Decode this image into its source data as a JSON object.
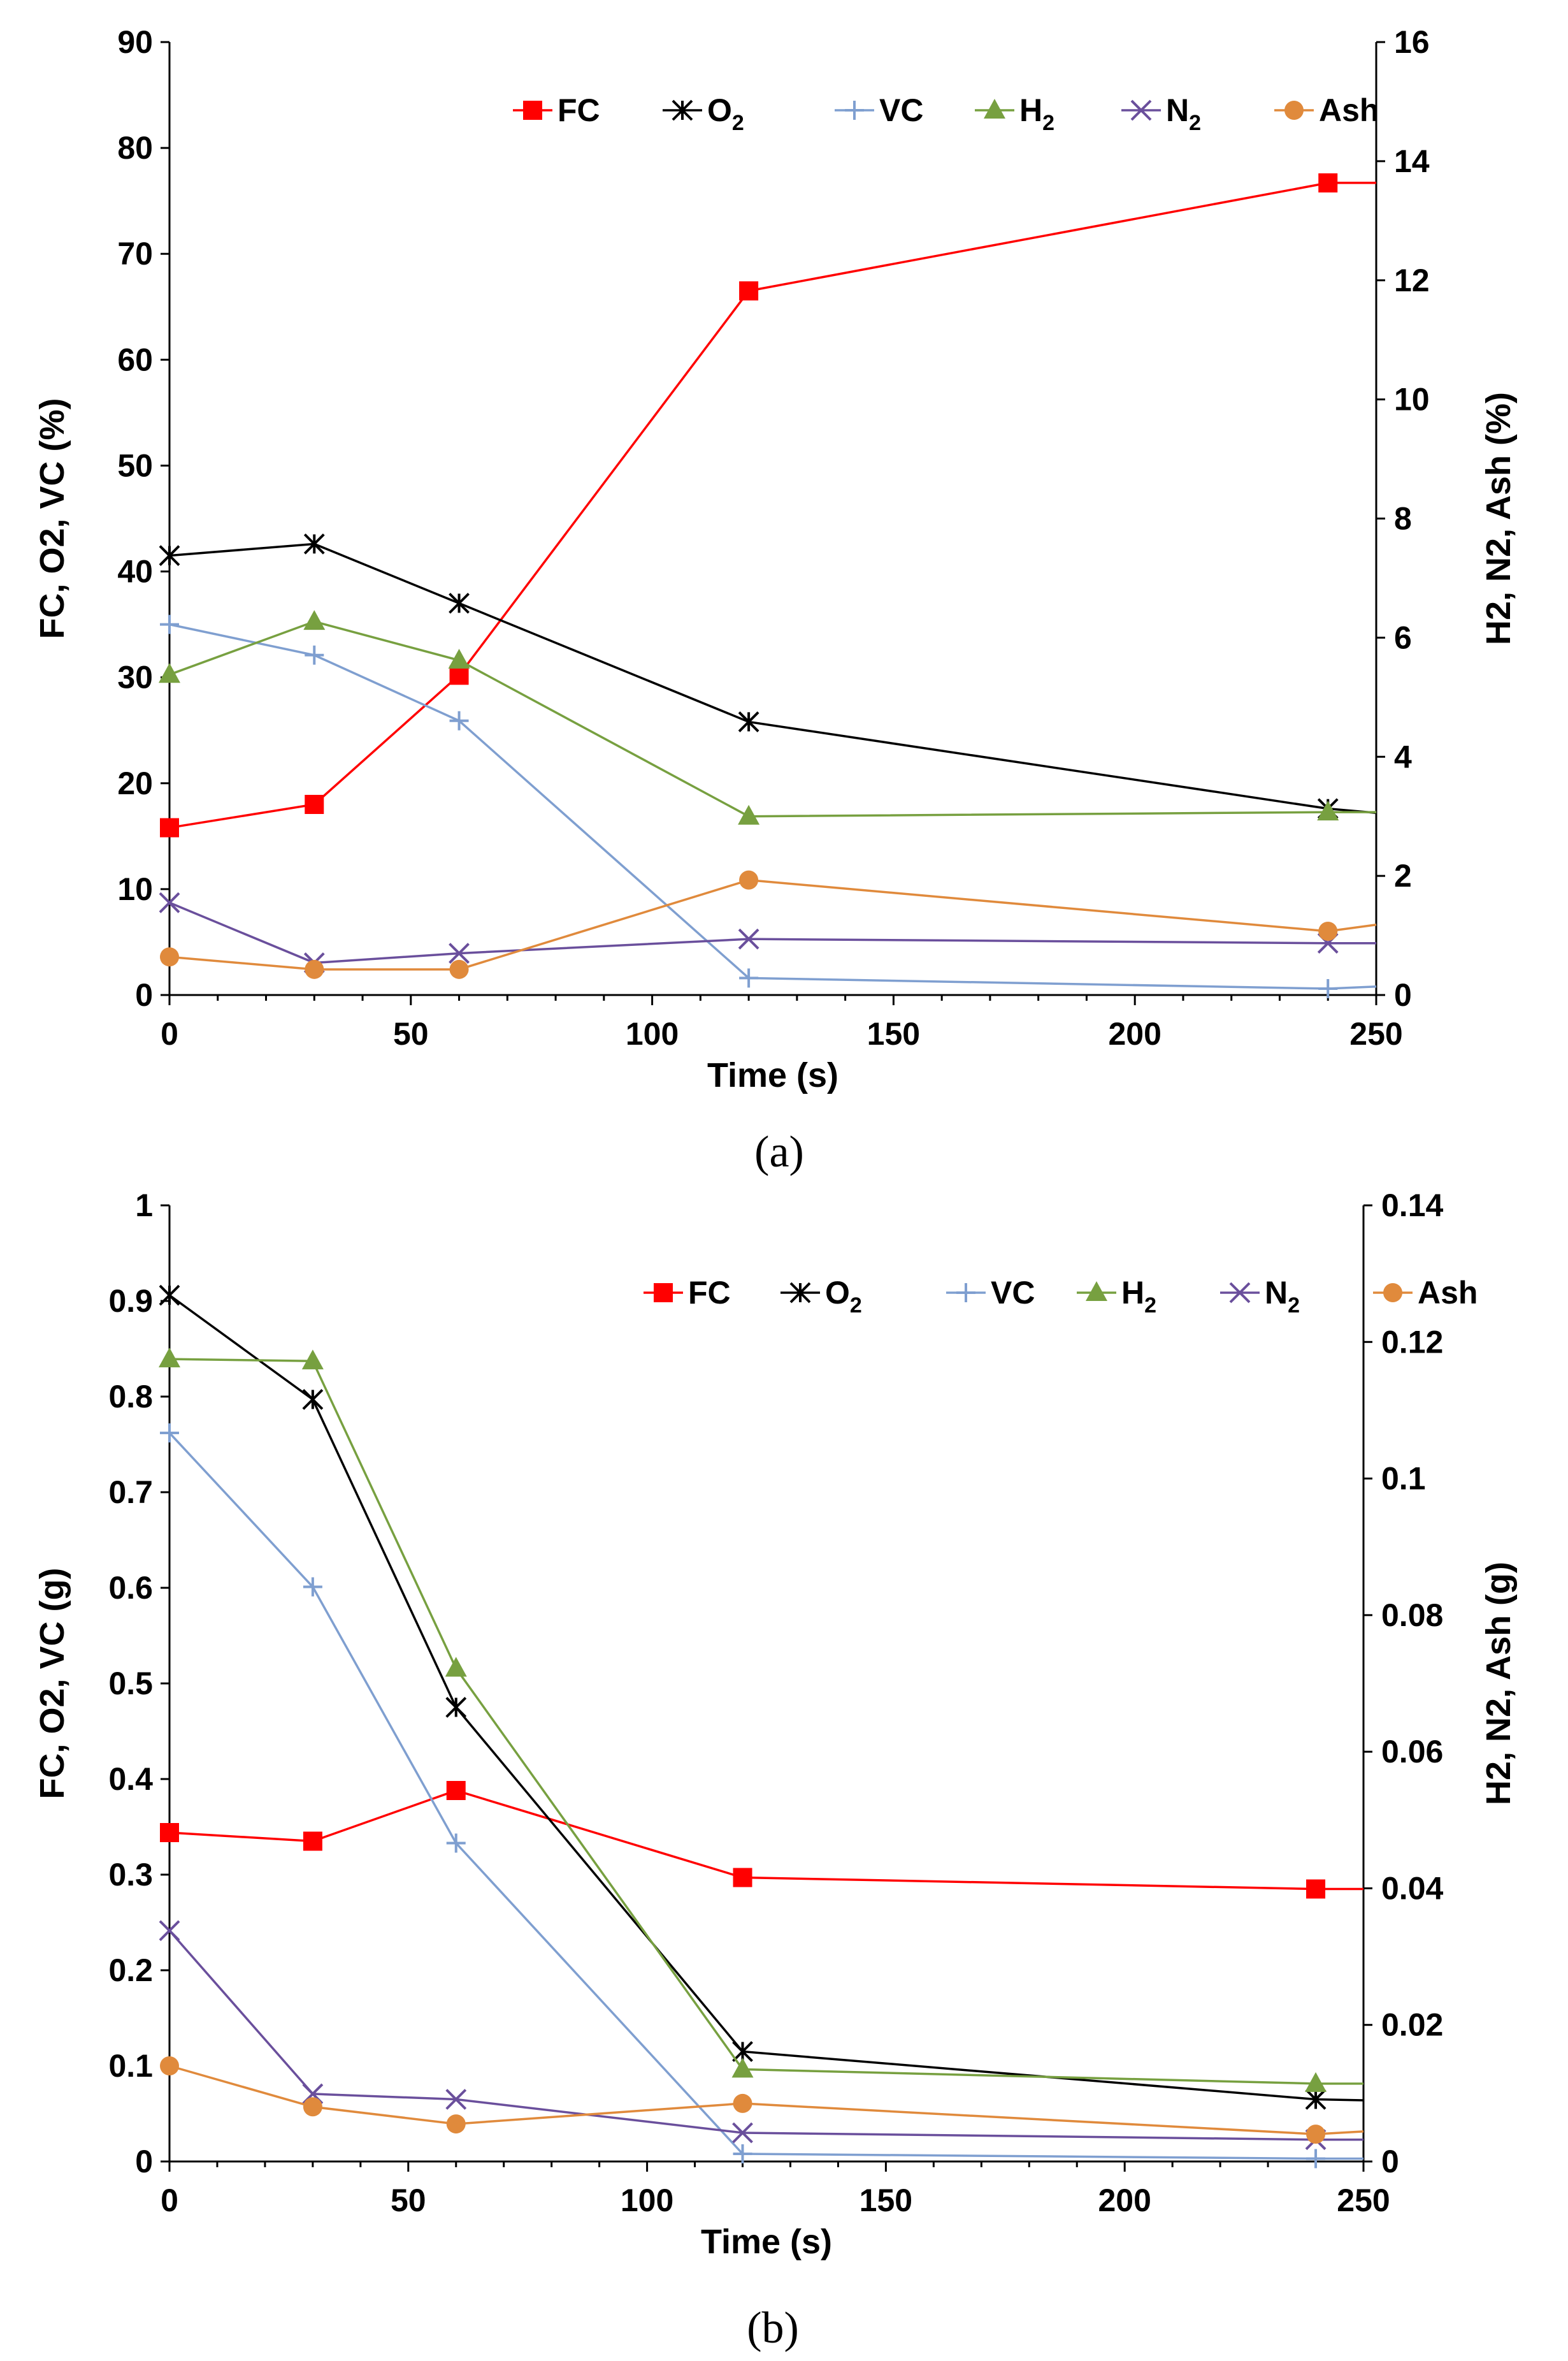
{
  "chart_data": [
    {
      "type": "line",
      "caption": "(a)",
      "xlabel": "Time (s)",
      "ylabel": "FC, O2, VC (%)",
      "y2label": "H2, N2, Ash (%)",
      "xlim": [
        0,
        250
      ],
      "ylim": [
        0,
        90
      ],
      "y2lim": [
        0,
        16
      ],
      "xticks": [
        "0",
        "50",
        "100",
        "150",
        "200",
        "250"
      ],
      "yticks": [
        "0",
        "10",
        "20",
        "30",
        "40",
        "50",
        "60",
        "70",
        "80",
        "90"
      ],
      "y2ticks": [
        "0",
        "2",
        "4",
        "6",
        "8",
        "10",
        "12",
        "14",
        "16"
      ],
      "legend_position": "top",
      "x": [
        0,
        30,
        60,
        120,
        240,
        250
      ],
      "series": [
        {
          "name": "FC",
          "legend_main": "FC",
          "legend_sub": "",
          "axis": "left",
          "color": "#ff0000",
          "marker": "square",
          "values": [
            15.8,
            18.0,
            30.2,
            66.5,
            76.7,
            76.7
          ]
        },
        {
          "name": "O2",
          "legend_main": "O",
          "legend_sub": "2",
          "axis": "left",
          "color": "#000000",
          "marker": "star",
          "values": [
            41.5,
            42.6,
            37.0,
            25.8,
            17.6,
            17.2
          ]
        },
        {
          "name": "VC",
          "legend_main": "VC",
          "legend_sub": "",
          "axis": "left",
          "color": "#7f9fd0",
          "marker": "plus",
          "values": [
            35.0,
            32.1,
            25.9,
            1.6,
            0.6,
            0.8
          ]
        },
        {
          "name": "H2",
          "legend_main": "H",
          "legend_sub": "2",
          "axis": "right",
          "color": "#77a040",
          "marker": "triangle",
          "values": [
            5.38,
            6.27,
            5.62,
            3.0,
            3.07,
            3.07
          ]
        },
        {
          "name": "N2",
          "legend_main": "N",
          "legend_sub": "2",
          "axis": "right",
          "color": "#6a4f9c",
          "marker": "x",
          "values": [
            1.55,
            0.54,
            0.7,
            0.94,
            0.87,
            0.87
          ]
        },
        {
          "name": "Ash",
          "legend_main": "Ash",
          "legend_sub": "",
          "axis": "right",
          "color": "#e08a3c",
          "marker": "circle",
          "values": [
            0.64,
            0.43,
            0.43,
            1.93,
            1.07,
            1.18
          ]
        }
      ]
    },
    {
      "type": "line",
      "caption": "(b)",
      "xlabel": "Time (s)",
      "ylabel": "FC, O2, VC (g)",
      "y2label": "H2, N2, Ash (g)",
      "xlim": [
        0,
        250
      ],
      "ylim": [
        0,
        1
      ],
      "y2lim": [
        0,
        0.14
      ],
      "xticks": [
        "0",
        "50",
        "100",
        "150",
        "200",
        "250"
      ],
      "yticks": [
        "0",
        "0.1",
        "0.2",
        "0.3",
        "0.4",
        "0.5",
        "0.6",
        "0.7",
        "0.8",
        "0.9",
        "1"
      ],
      "y2ticks": [
        "0",
        "0.02",
        "0.04",
        "0.06",
        "0.08",
        "0.1",
        "0.12",
        "0.14"
      ],
      "legend_position": "top-right",
      "x": [
        0,
        30,
        60,
        120,
        240,
        250
      ],
      "series": [
        {
          "name": "FC",
          "legend_main": "FC",
          "legend_sub": "",
          "axis": "left",
          "color": "#ff0000",
          "marker": "square",
          "values": [
            0.344,
            0.335,
            0.388,
            0.297,
            0.285,
            0.285
          ]
        },
        {
          "name": "O2",
          "legend_main": "O",
          "legend_sub": "2",
          "axis": "left",
          "color": "#000000",
          "marker": "star",
          "values": [
            0.906,
            0.797,
            0.475,
            0.115,
            0.065,
            0.064
          ]
        },
        {
          "name": "VC",
          "legend_main": "VC",
          "legend_sub": "",
          "axis": "left",
          "color": "#7f9fd0",
          "marker": "plus",
          "values": [
            0.762,
            0.601,
            0.333,
            0.008,
            0.003,
            0.003
          ]
        },
        {
          "name": "H2",
          "legend_main": "H",
          "legend_sub": "2",
          "axis": "right",
          "color": "#77a040",
          "marker": "triangle",
          "values": [
            0.1175,
            0.1172,
            0.0722,
            0.0135,
            0.0114,
            0.0114
          ]
        },
        {
          "name": "N2",
          "legend_main": "N",
          "legend_sub": "2",
          "axis": "right",
          "color": "#6a4f9c",
          "marker": "x",
          "values": [
            0.0338,
            0.0099,
            0.0091,
            0.0042,
            0.0032,
            0.0032
          ]
        },
        {
          "name": "Ash",
          "legend_main": "Ash",
          "legend_sub": "",
          "axis": "right",
          "color": "#e08a3c",
          "marker": "circle",
          "values": [
            0.014,
            0.008,
            0.0055,
            0.0085,
            0.004,
            0.0044
          ]
        }
      ]
    }
  ]
}
